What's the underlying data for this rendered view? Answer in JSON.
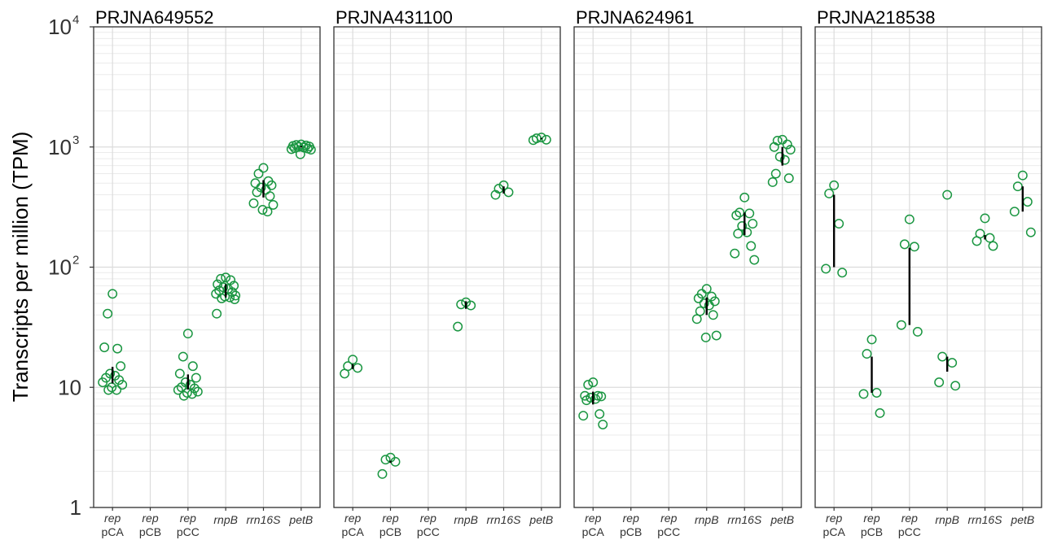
{
  "chart_data": {
    "type": "scatter",
    "ylabel": "Transcripts per million (TPM)",
    "yscale": "log",
    "ylim": [
      1,
      10000
    ],
    "yticks": [
      {
        "value": 10000,
        "base": "10",
        "exp": "4"
      },
      {
        "value": 1000,
        "base": "10",
        "exp": "3"
      },
      {
        "value": 100,
        "base": "10",
        "exp": "2"
      },
      {
        "value": 10,
        "base": "10",
        "exp": ""
      },
      {
        "value": 1,
        "base": "1",
        "exp": ""
      }
    ],
    "categories": [
      {
        "gene": "rep",
        "plasmid": "pCA"
      },
      {
        "gene": "rep",
        "plasmid": "pCB"
      },
      {
        "gene": "rep",
        "plasmid": "pCC"
      },
      {
        "gene": "rnpB",
        "plasmid": ""
      },
      {
        "gene": "rrn16S",
        "plasmid": ""
      },
      {
        "gene": "petB",
        "plasmid": ""
      }
    ],
    "point_color": "#1a9641",
    "grid": true,
    "panels": [
      {
        "title": "PRJNA649552",
        "points": [
          [
            0,
            60
          ],
          [
            0,
            41
          ],
          [
            0,
            21
          ],
          [
            0,
            21.5
          ],
          [
            0,
            15
          ],
          [
            0,
            13
          ],
          [
            0,
            12.5
          ],
          [
            0,
            12
          ],
          [
            0,
            11.5
          ],
          [
            0,
            11
          ],
          [
            0,
            10.5
          ],
          [
            0,
            10
          ],
          [
            0,
            9.5
          ],
          [
            0,
            9.5
          ],
          [
            2,
            28
          ],
          [
            2,
            18
          ],
          [
            2,
            15
          ],
          [
            2,
            13
          ],
          [
            2,
            12
          ],
          [
            2,
            11
          ],
          [
            2,
            10.5
          ],
          [
            2,
            10
          ],
          [
            2,
            9.8
          ],
          [
            2,
            9.5
          ],
          [
            2,
            9.2
          ],
          [
            2,
            9
          ],
          [
            2,
            8.8
          ],
          [
            2,
            8.5
          ],
          [
            3,
            82
          ],
          [
            3,
            80
          ],
          [
            3,
            78
          ],
          [
            3,
            72
          ],
          [
            3,
            70
          ],
          [
            3,
            68
          ],
          [
            3,
            66
          ],
          [
            3,
            64
          ],
          [
            3,
            62
          ],
          [
            3,
            60
          ],
          [
            3,
            58
          ],
          [
            3,
            57
          ],
          [
            3,
            56
          ],
          [
            3,
            55
          ],
          [
            3,
            54
          ],
          [
            3,
            41
          ],
          [
            4,
            670
          ],
          [
            4,
            600
          ],
          [
            4,
            520
          ],
          [
            4,
            500
          ],
          [
            4,
            480
          ],
          [
            4,
            460
          ],
          [
            4,
            440
          ],
          [
            4,
            420
          ],
          [
            4,
            390
          ],
          [
            4,
            340
          ],
          [
            4,
            330
          ],
          [
            4,
            300
          ],
          [
            4,
            290
          ],
          [
            5,
            1050
          ],
          [
            5,
            1040
          ],
          [
            5,
            1030
          ],
          [
            5,
            1020
          ],
          [
            5,
            1010
          ],
          [
            5,
            1000
          ],
          [
            5,
            990
          ],
          [
            5,
            980
          ],
          [
            5,
            970
          ],
          [
            5,
            960
          ],
          [
            5,
            950
          ],
          [
            5,
            870
          ]
        ],
        "medians": [
          [
            0,
            10.8,
            14.8
          ],
          [
            2,
            9.6,
            12.8
          ],
          [
            3,
            56,
            72
          ],
          [
            4,
            380,
            530
          ],
          [
            5,
            990,
            1020
          ]
        ]
      },
      {
        "title": "PRJNA431100",
        "points": [
          [
            0,
            17
          ],
          [
            0,
            15
          ],
          [
            0,
            14.5
          ],
          [
            0,
            13
          ],
          [
            1,
            2.6
          ],
          [
            1,
            2.5
          ],
          [
            1,
            2.4
          ],
          [
            1,
            1.9
          ],
          [
            3,
            51
          ],
          [
            3,
            49
          ],
          [
            3,
            48
          ],
          [
            3,
            32
          ],
          [
            4,
            480
          ],
          [
            4,
            450
          ],
          [
            4,
            420
          ],
          [
            4,
            400
          ],
          [
            5,
            1200
          ],
          [
            5,
            1180
          ],
          [
            5,
            1150
          ],
          [
            5,
            1140
          ]
        ],
        "medians": [
          [
            0,
            14.2,
            15.6
          ],
          [
            1,
            2.35,
            2.45
          ],
          [
            3,
            45,
            52
          ],
          [
            4,
            410,
            470
          ],
          [
            5,
            1160,
            1190
          ]
        ]
      },
      {
        "title": "PRJNA624961",
        "points": [
          [
            0,
            11
          ],
          [
            0,
            10.5
          ],
          [
            0,
            8.5
          ],
          [
            0,
            8.5
          ],
          [
            0,
            8.4
          ],
          [
            0,
            8.2
          ],
          [
            0,
            8
          ],
          [
            0,
            7.8
          ],
          [
            0,
            6
          ],
          [
            0,
            5.8
          ],
          [
            0,
            4.9
          ],
          [
            3,
            66
          ],
          [
            3,
            60
          ],
          [
            3,
            57
          ],
          [
            3,
            55
          ],
          [
            3,
            52
          ],
          [
            3,
            50
          ],
          [
            3,
            48
          ],
          [
            3,
            43
          ],
          [
            3,
            40
          ],
          [
            3,
            37
          ],
          [
            3,
            27
          ],
          [
            3,
            26
          ],
          [
            4,
            380
          ],
          [
            4,
            285
          ],
          [
            4,
            280
          ],
          [
            4,
            270
          ],
          [
            4,
            230
          ],
          [
            4,
            220
          ],
          [
            4,
            195
          ],
          [
            4,
            190
          ],
          [
            4,
            150
          ],
          [
            4,
            130
          ],
          [
            4,
            115
          ],
          [
            5,
            1150
          ],
          [
            5,
            1130
          ],
          [
            5,
            1050
          ],
          [
            5,
            1000
          ],
          [
            5,
            950
          ],
          [
            5,
            830
          ],
          [
            5,
            780
          ],
          [
            5,
            600
          ],
          [
            5,
            550
          ],
          [
            5,
            510
          ]
        ],
        "medians": [
          [
            0,
            7.2,
            9.2
          ],
          [
            3,
            40,
            56
          ],
          [
            4,
            185,
            285
          ],
          [
            5,
            700,
            1000
          ]
        ]
      },
      {
        "title": "PRJNA218538",
        "points": [
          [
            0,
            480
          ],
          [
            0,
            410
          ],
          [
            0,
            230
          ],
          [
            0,
            97
          ],
          [
            0,
            90
          ],
          [
            1,
            25
          ],
          [
            1,
            19
          ],
          [
            1,
            9
          ],
          [
            1,
            8.8
          ],
          [
            1,
            6.1
          ],
          [
            2,
            250
          ],
          [
            2,
            155
          ],
          [
            2,
            148
          ],
          [
            2,
            33
          ],
          [
            2,
            29
          ],
          [
            3,
            400
          ],
          [
            3,
            18
          ],
          [
            3,
            16
          ],
          [
            3,
            11
          ],
          [
            3,
            10.3
          ],
          [
            4,
            255
          ],
          [
            4,
            190
          ],
          [
            4,
            175
          ],
          [
            4,
            165
          ],
          [
            4,
            150
          ],
          [
            5,
            580
          ],
          [
            5,
            470
          ],
          [
            5,
            350
          ],
          [
            5,
            290
          ],
          [
            5,
            195
          ]
        ],
        "medians": [
          [
            0,
            100,
            400
          ],
          [
            1,
            9,
            18
          ],
          [
            2,
            33,
            145
          ],
          [
            3,
            13.5,
            18
          ],
          [
            4,
            170,
            185
          ],
          [
            5,
            290,
            470
          ]
        ]
      }
    ]
  }
}
